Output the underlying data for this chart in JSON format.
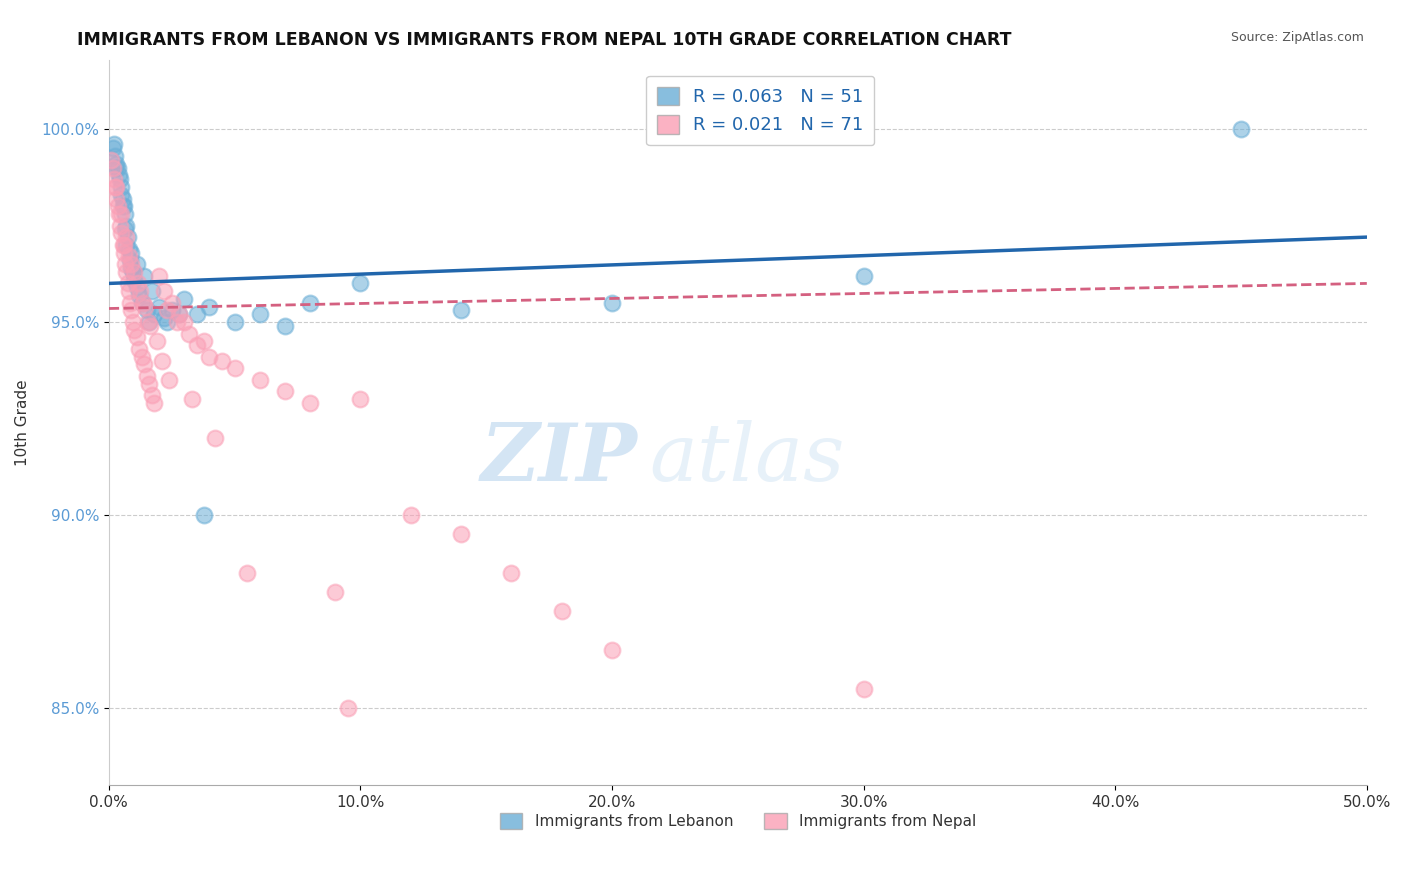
{
  "title": "IMMIGRANTS FROM LEBANON VS IMMIGRANTS FROM NEPAL 10TH GRADE CORRELATION CHART",
  "source": "Source: ZipAtlas.com",
  "ylabel": "10th Grade",
  "x_min": 0.0,
  "x_max": 50.0,
  "y_min": 83.0,
  "y_max": 101.8,
  "ytick_labels": [
    "85.0%",
    "90.0%",
    "95.0%",
    "100.0%"
  ],
  "ytick_values": [
    85.0,
    90.0,
    95.0,
    100.0
  ],
  "xtick_labels": [
    "0.0%",
    "10.0%",
    "20.0%",
    "30.0%",
    "40.0%",
    "50.0%"
  ],
  "xtick_values": [
    0.0,
    10.0,
    20.0,
    30.0,
    40.0,
    50.0
  ],
  "legend_label1": "R = 0.063   N = 51",
  "legend_label2": "R = 0.021   N = 71",
  "legend_footer1": "Immigrants from Lebanon",
  "legend_footer2": "Immigrants from Nepal",
  "color_blue": "#6baed6",
  "color_pink": "#fa9fb5",
  "color_blue_line": "#2166ac",
  "color_pink_line": "#d46080",
  "watermark_zip": "ZIP",
  "watermark_atlas": "atlas",
  "blue_trend_x0": 0.0,
  "blue_trend_y0": 96.0,
  "blue_trend_x1": 50.0,
  "blue_trend_y1": 97.2,
  "pink_trend_x0": 0.0,
  "pink_trend_y0": 95.35,
  "pink_trend_x1": 50.0,
  "pink_trend_y1": 96.0,
  "blue_points_x": [
    0.15,
    0.2,
    0.25,
    0.3,
    0.35,
    0.4,
    0.5,
    0.55,
    0.6,
    0.65,
    0.7,
    0.75,
    0.8,
    0.85,
    0.9,
    1.0,
    1.1,
    1.2,
    1.3,
    1.5,
    1.6,
    1.8,
    2.0,
    2.2,
    2.5,
    3.0,
    3.5,
    4.0,
    5.0,
    6.0,
    7.0,
    8.0,
    10.0,
    14.0,
    20.0,
    30.0,
    45.0,
    0.45,
    0.55,
    0.65,
    0.9,
    1.1,
    1.4,
    1.7,
    2.3,
    2.8,
    3.8,
    0.3,
    0.5,
    0.7,
    0.95
  ],
  "blue_points_y": [
    99.5,
    99.6,
    99.3,
    99.1,
    99.0,
    98.8,
    98.5,
    98.2,
    98.0,
    97.8,
    97.5,
    97.2,
    96.9,
    96.6,
    96.4,
    96.1,
    95.9,
    95.7,
    95.5,
    95.3,
    95.0,
    95.2,
    95.4,
    95.1,
    95.3,
    95.6,
    95.2,
    95.4,
    95.0,
    95.2,
    94.9,
    95.5,
    96.0,
    95.3,
    95.5,
    96.2,
    100.0,
    98.7,
    98.0,
    97.4,
    96.8,
    96.5,
    96.2,
    95.8,
    95.0,
    95.2,
    90.0,
    99.0,
    98.3,
    97.0,
    96.3
  ],
  "pink_points_x": [
    0.1,
    0.15,
    0.2,
    0.25,
    0.3,
    0.35,
    0.4,
    0.45,
    0.5,
    0.55,
    0.6,
    0.65,
    0.7,
    0.75,
    0.8,
    0.85,
    0.9,
    0.95,
    1.0,
    1.1,
    1.2,
    1.3,
    1.4,
    1.5,
    1.6,
    1.7,
    1.8,
    2.0,
    2.2,
    2.5,
    2.8,
    3.0,
    3.2,
    3.5,
    4.0,
    5.0,
    6.0,
    7.0,
    8.0,
    9.0,
    10.0,
    12.0,
    14.0,
    16.0,
    18.0,
    20.0,
    2.3,
    2.7,
    3.8,
    4.5,
    0.3,
    0.5,
    0.7,
    0.9,
    1.15,
    1.35,
    1.55,
    0.6,
    0.8,
    1.0,
    1.25,
    1.45,
    1.65,
    1.9,
    2.1,
    2.4,
    3.3,
    4.2,
    5.5,
    9.5,
    30.0
  ],
  "pink_points_y": [
    99.2,
    99.0,
    98.7,
    98.5,
    98.2,
    98.0,
    97.8,
    97.5,
    97.3,
    97.0,
    96.8,
    96.5,
    96.3,
    96.0,
    95.8,
    95.5,
    95.3,
    95.0,
    94.8,
    94.6,
    94.3,
    94.1,
    93.9,
    93.6,
    93.4,
    93.1,
    92.9,
    96.2,
    95.8,
    95.5,
    95.2,
    95.0,
    94.7,
    94.4,
    94.1,
    93.8,
    93.5,
    93.2,
    92.9,
    88.0,
    93.0,
    90.0,
    89.5,
    88.5,
    87.5,
    86.5,
    95.3,
    95.0,
    94.5,
    94.0,
    98.5,
    97.8,
    97.2,
    96.5,
    96.0,
    95.5,
    95.0,
    97.0,
    96.7,
    96.3,
    95.8,
    95.4,
    94.9,
    94.5,
    94.0,
    93.5,
    93.0,
    92.0,
    88.5,
    85.0,
    85.5
  ]
}
